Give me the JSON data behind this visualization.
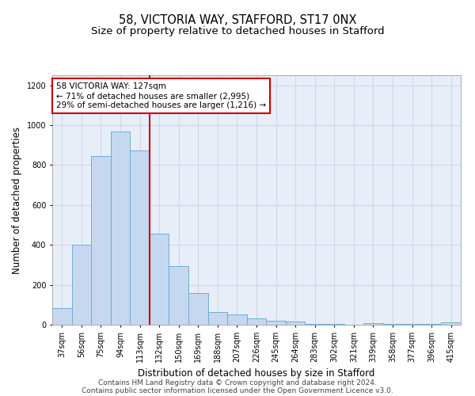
{
  "title_line1": "58, VICTORIA WAY, STAFFORD, ST17 0NX",
  "title_line2": "Size of property relative to detached houses in Stafford",
  "xlabel": "Distribution of detached houses by size in Stafford",
  "ylabel": "Number of detached properties",
  "categories": [
    "37sqm",
    "56sqm",
    "75sqm",
    "94sqm",
    "113sqm",
    "132sqm",
    "150sqm",
    "169sqm",
    "188sqm",
    "207sqm",
    "226sqm",
    "245sqm",
    "264sqm",
    "283sqm",
    "302sqm",
    "321sqm",
    "339sqm",
    "358sqm",
    "377sqm",
    "396sqm",
    "415sqm"
  ],
  "values": [
    85,
    400,
    845,
    970,
    875,
    455,
    295,
    160,
    65,
    50,
    30,
    20,
    15,
    5,
    5,
    0,
    8,
    2,
    2,
    2,
    10
  ],
  "bar_color": "#c5d8f0",
  "bar_edge_color": "#6baed6",
  "vline_x_index": 5,
  "vline_color": "#cc0000",
  "annotation_text": "58 VICTORIA WAY: 127sqm\n← 71% of detached houses are smaller (2,995)\n29% of semi-detached houses are larger (1,216) →",
  "annotation_box_facecolor": "#ffffff",
  "annotation_box_edgecolor": "#cc0000",
  "ylim": [
    0,
    1250
  ],
  "yticks": [
    0,
    200,
    400,
    600,
    800,
    1000,
    1200
  ],
  "grid_color": "#ccd8ea",
  "bg_color": "#e8eef8",
  "footer_line1": "Contains HM Land Registry data © Crown copyright and database right 2024.",
  "footer_line2": "Contains public sector information licensed under the Open Government Licence v3.0.",
  "title_fontsize": 10.5,
  "subtitle_fontsize": 9.5,
  "axis_label_fontsize": 8.5,
  "tick_fontsize": 7,
  "annotation_fontsize": 7.5,
  "footer_fontsize": 6.5
}
